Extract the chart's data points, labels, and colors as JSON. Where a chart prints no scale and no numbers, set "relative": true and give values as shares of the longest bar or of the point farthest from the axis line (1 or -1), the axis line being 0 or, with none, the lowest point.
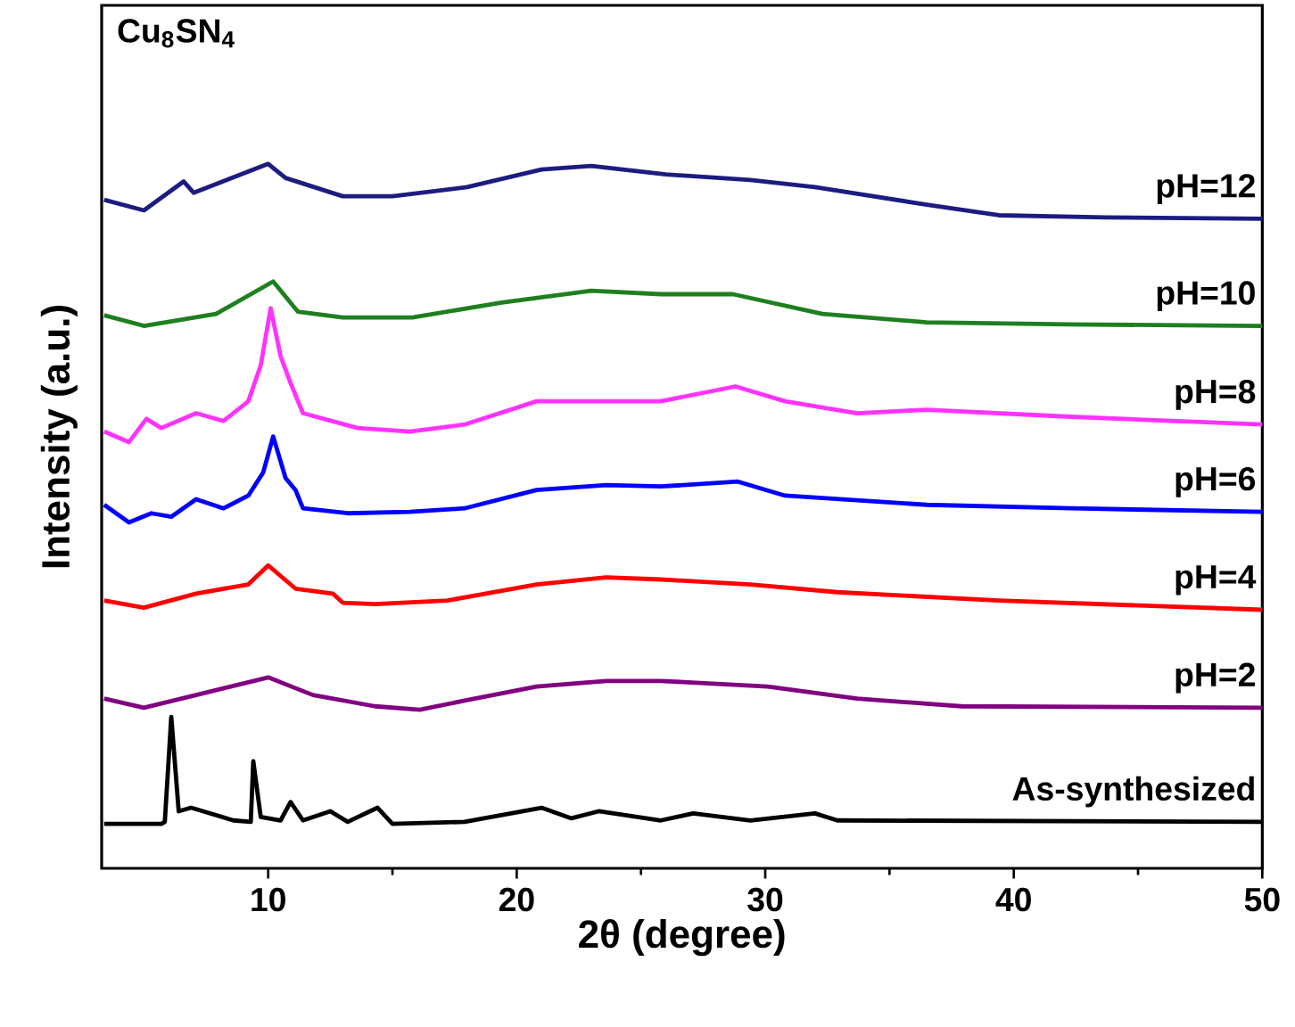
{
  "chart_data": {
    "type": "line",
    "title": "Cu$_{8}$SN$_{4}$",
    "xlabel": "2θ (degree)",
    "ylabel": "Intensity (a.u.)",
    "relative": true,
    "xlim": [
      3.3,
      50
    ],
    "xticks": [
      10,
      20,
      30,
      40,
      50
    ],
    "series": [
      {
        "name": "pH=12",
        "color": "#1c1c80",
        "x": [
          3.4,
          5,
          6.6,
          7,
          10,
          10.7,
          13,
          15,
          18,
          21,
          23,
          26,
          29.4,
          32,
          36.5,
          39.4,
          43.7,
          50
        ],
        "values": [
          0.949,
          0.934,
          0.975,
          0.959,
          1.0,
          0.98,
          0.954,
          0.954,
          0.967,
          0.992,
          0.997,
          0.985,
          0.977,
          0.967,
          0.942,
          0.927,
          0.924,
          0.922
        ]
      },
      {
        "name": "pH=10",
        "color": "#1f7f1f",
        "x": [
          3.4,
          5,
          7.9,
          10.2,
          11.2,
          13,
          15.8,
          19.4,
          23,
          25.8,
          28.7,
          32.3,
          36.5,
          42.3,
          50
        ],
        "values": [
          0.785,
          0.77,
          0.787,
          0.833,
          0.79,
          0.782,
          0.782,
          0.803,
          0.82,
          0.815,
          0.815,
          0.787,
          0.775,
          0.772,
          0.77
        ]
      },
      {
        "name": "pH=8",
        "color": "#ff33ff",
        "x": [
          3.4,
          4.4,
          5.1,
          5.7,
          7.1,
          8.2,
          9.2,
          9.7,
          10.1,
          10.5,
          10.9,
          11.4,
          13.6,
          15.7,
          17.9,
          20.8,
          22.9,
          25.8,
          28.8,
          30.8,
          33.7,
          36.5,
          42.3,
          50
        ],
        "values": [
          0.62,
          0.605,
          0.638,
          0.625,
          0.646,
          0.635,
          0.663,
          0.714,
          0.795,
          0.727,
          0.689,
          0.646,
          0.625,
          0.62,
          0.63,
          0.663,
          0.663,
          0.663,
          0.684,
          0.663,
          0.646,
          0.651,
          0.641,
          0.63
        ]
      },
      {
        "name": "pH=6",
        "color": "#0000ff",
        "x": [
          3.4,
          4.4,
          5.3,
          6.1,
          7.1,
          8.2,
          9.2,
          9.8,
          10.2,
          10.7,
          11.1,
          11.4,
          13.2,
          15.7,
          17.9,
          20.8,
          23.6,
          25.8,
          28.9,
          30.8,
          36.5,
          42.3,
          50
        ],
        "values": [
          0.516,
          0.491,
          0.504,
          0.499,
          0.524,
          0.511,
          0.529,
          0.562,
          0.613,
          0.554,
          0.537,
          0.511,
          0.504,
          0.506,
          0.511,
          0.537,
          0.544,
          0.542,
          0.549,
          0.529,
          0.516,
          0.511,
          0.506
        ]
      },
      {
        "name": "pH=4",
        "color": "#ff0000",
        "x": [
          3.4,
          5,
          7.1,
          9.2,
          10,
          11.1,
          12.6,
          13,
          14.3,
          17.2,
          20.8,
          23.6,
          25.8,
          29.4,
          32.9,
          39.4,
          50
        ],
        "values": [
          0.38,
          0.37,
          0.39,
          0.403,
          0.43,
          0.397,
          0.39,
          0.377,
          0.375,
          0.38,
          0.403,
          0.413,
          0.41,
          0.403,
          0.392,
          0.38,
          0.367
        ]
      },
      {
        "name": "pH=2",
        "color": "#800080",
        "x": [
          3.4,
          5,
          7.1,
          10,
          11.8,
          14.3,
          16.1,
          17.9,
          20.8,
          23.6,
          25.8,
          30.1,
          33.7,
          37.9,
          50
        ],
        "values": [
          0.241,
          0.228,
          0.246,
          0.271,
          0.246,
          0.23,
          0.225,
          0.238,
          0.258,
          0.266,
          0.266,
          0.258,
          0.241,
          0.23,
          0.228
        ]
      },
      {
        "name": "As-synthesized",
        "color": "#000000",
        "x": [
          3.4,
          5.7,
          5.84,
          6.1,
          6.4,
          6.9,
          8.6,
          9.3,
          9.4,
          9.7,
          10.5,
          10.9,
          11.4,
          12.5,
          13.2,
          14.4,
          15,
          17.9,
          21,
          22.2,
          23.3,
          25.8,
          27.1,
          29.4,
          32,
          32.9,
          50
        ],
        "values": [
          0.063,
          0.063,
          0.066,
          0.215,
          0.081,
          0.086,
          0.068,
          0.066,
          0.152,
          0.073,
          0.068,
          0.094,
          0.068,
          0.081,
          0.066,
          0.086,
          0.063,
          0.066,
          0.086,
          0.071,
          0.081,
          0.068,
          0.078,
          0.068,
          0.078,
          0.068,
          0.066
        ]
      }
    ]
  }
}
